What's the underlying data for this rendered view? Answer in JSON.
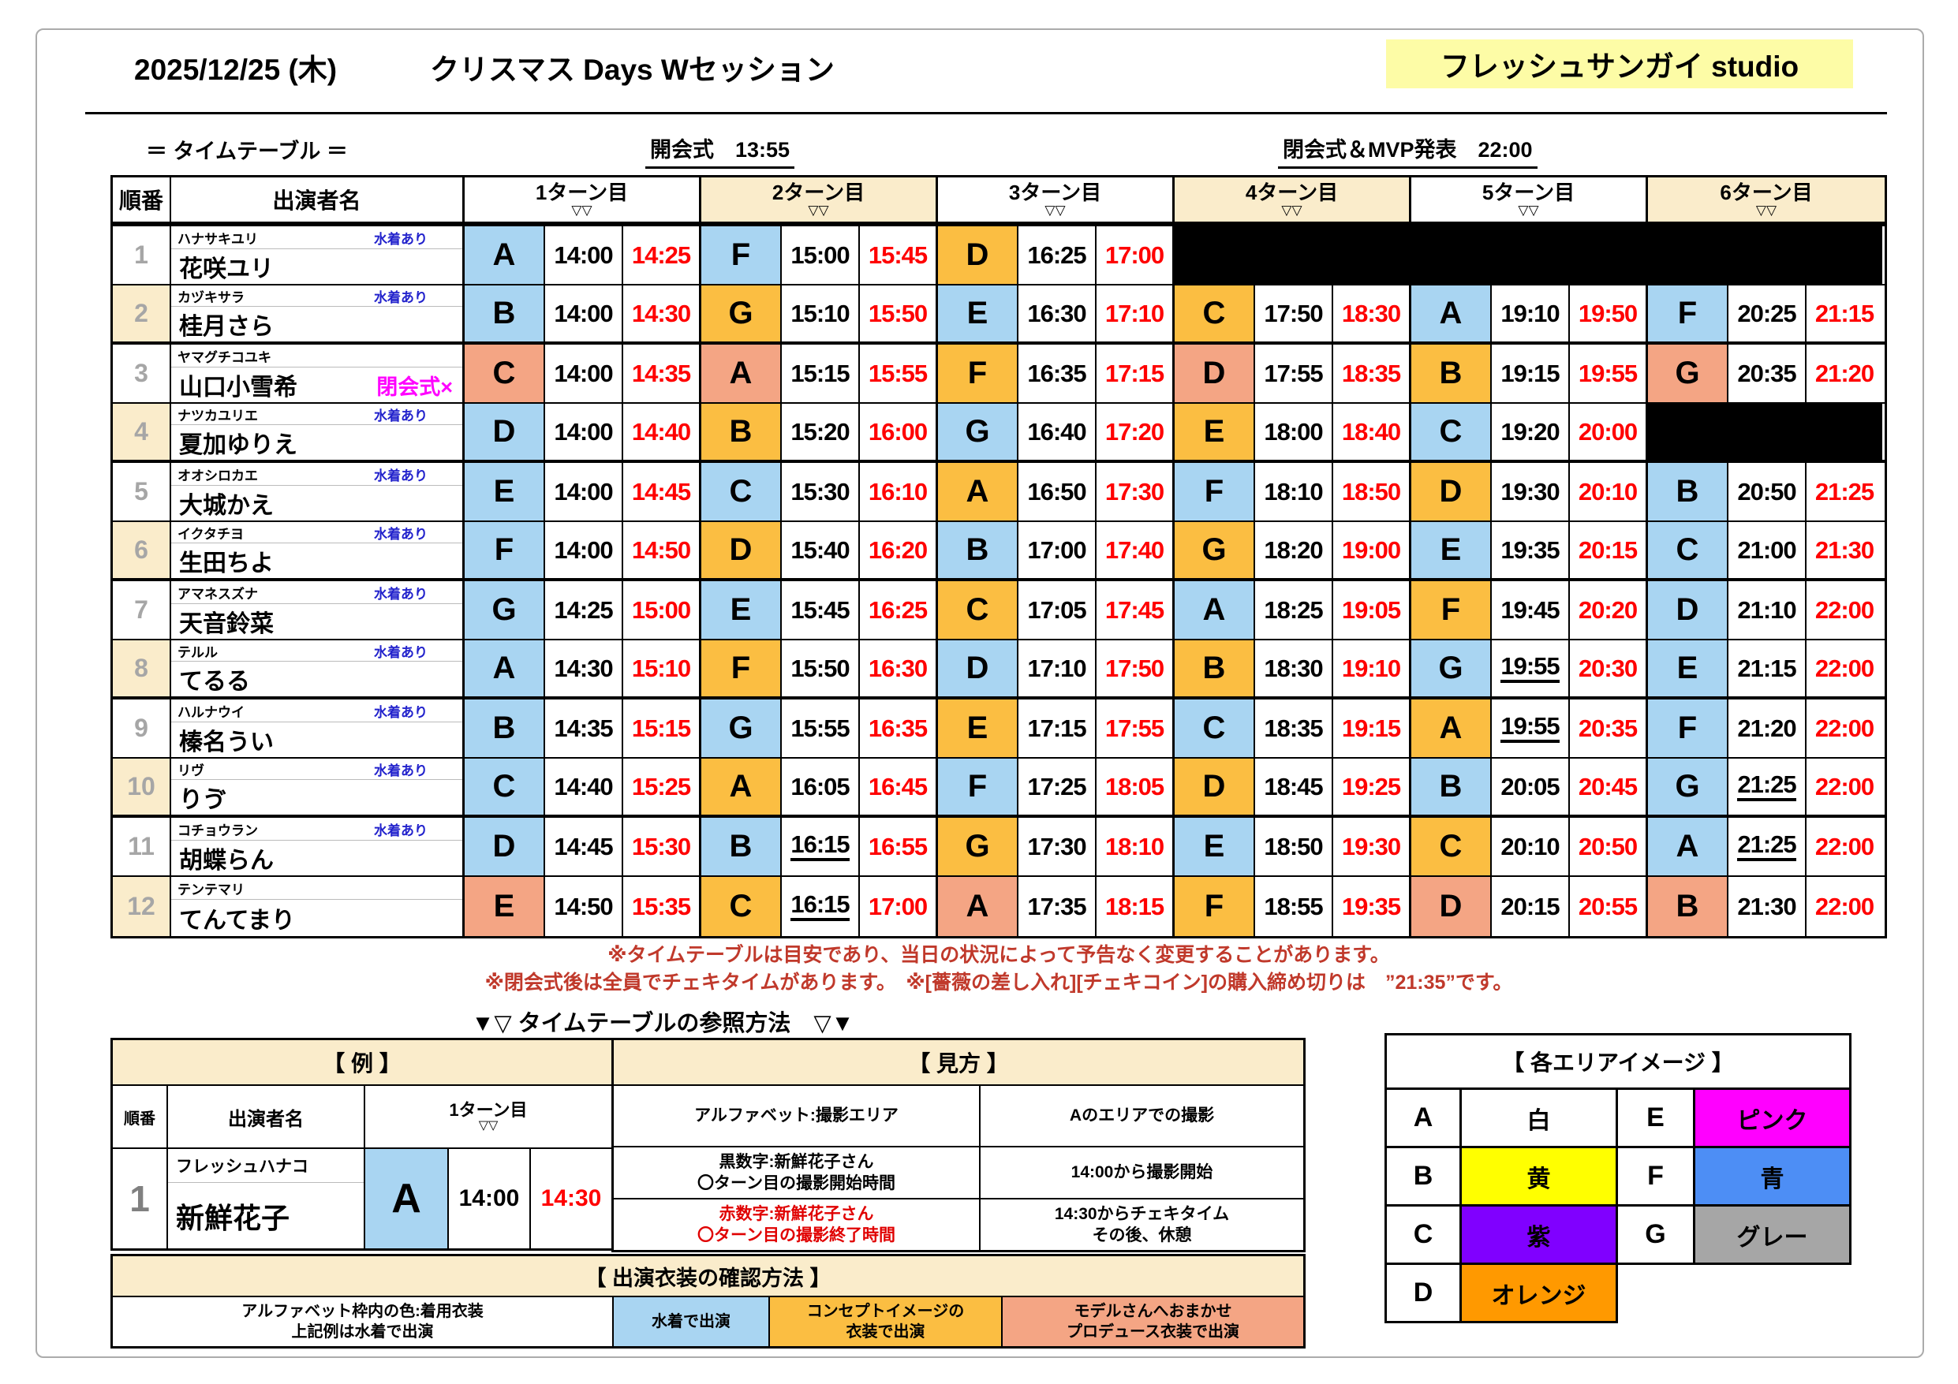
{
  "header": {
    "date": "2025/12/25 (木)",
    "title": "クリスマス Days Wセッション",
    "studio": "フレッシュサンガイ studio",
    "timetable_label": "＝ タイムテーブル ＝",
    "opening": "開会式　13:55",
    "closing": "閉会式＆MVP発表　22:00"
  },
  "colors": {
    "swim_cell": "#A9D5F2",
    "concept_cell": "#FBBE42",
    "produce_cell": "#F4A584",
    "cream": "#FAECCB",
    "studio_bg": "#FDFCA6",
    "end_time_red": "#FF0000",
    "note_red": "#C0392B",
    "swim_text_blue": "#2222CC",
    "closing_x_magenta": "#FF00FF"
  },
  "table": {
    "order_label": "順番",
    "name_label": "出演者名",
    "turn_headers": [
      {
        "label": "1ターン目",
        "sub": "▽▽",
        "tone": "",
        "over": "over"
      },
      {
        "label": "2ターン目",
        "sub": "▽▽",
        "tone": "cream",
        "over": "over"
      },
      {
        "label": "3ターン目",
        "sub": "▽▽",
        "tone": "",
        "over": ""
      },
      {
        "label": "4ターン目",
        "sub": "▽▽",
        "tone": "cream",
        "over": "over"
      },
      {
        "label": "5ターン目",
        "sub": "▽▽",
        "tone": "",
        "over": "over"
      },
      {
        "label": "6ターン目",
        "sub": "▽▽",
        "tone": "cream",
        "over": ""
      }
    ],
    "rows": [
      {
        "no": "1",
        "furigana": "ハナサキユリ",
        "swim": "水着あり",
        "name": "花咲ユリ",
        "note": "",
        "turns": [
          {
            "area": "A",
            "cls": "swim",
            "start": "14:00",
            "end": "14:25",
            "startCls": ""
          },
          {
            "area": "F",
            "cls": "swim",
            "start": "15:00",
            "end": "15:45",
            "startCls": ""
          },
          {
            "area": "D",
            "cls": "concept",
            "start": "16:25",
            "end": "17:00",
            "startCls": ""
          },
          {
            "area": "",
            "cls": "blackout",
            "start": "",
            "end": "",
            "startCls": ""
          },
          {
            "area": "",
            "cls": "blackout",
            "start": "",
            "end": "",
            "startCls": ""
          },
          {
            "area": "",
            "cls": "blackout",
            "start": "",
            "end": "",
            "startCls": ""
          }
        ]
      },
      {
        "no": "2",
        "furigana": "カヅキサラ",
        "swim": "水着あり",
        "name": "桂月さら",
        "note": "",
        "turns": [
          {
            "area": "B",
            "cls": "swim",
            "start": "14:00",
            "end": "14:30",
            "startCls": ""
          },
          {
            "area": "G",
            "cls": "concept",
            "start": "15:10",
            "end": "15:50",
            "startCls": ""
          },
          {
            "area": "E",
            "cls": "swim",
            "start": "16:30",
            "end": "17:10",
            "startCls": ""
          },
          {
            "area": "C",
            "cls": "concept",
            "start": "17:50",
            "end": "18:30",
            "startCls": ""
          },
          {
            "area": "A",
            "cls": "swim",
            "start": "19:10",
            "end": "19:50",
            "startCls": ""
          },
          {
            "area": "F",
            "cls": "swim",
            "start": "20:25",
            "end": "21:15",
            "startCls": ""
          }
        ]
      },
      {
        "no": "3",
        "furigana": "ヤマグチコユキ",
        "swim": "",
        "name": "山口小雪希",
        "note": "閉会式×",
        "turns": [
          {
            "area": "C",
            "cls": "produce",
            "start": "14:00",
            "end": "14:35",
            "startCls": ""
          },
          {
            "area": "A",
            "cls": "produce",
            "start": "15:15",
            "end": "15:55",
            "startCls": ""
          },
          {
            "area": "F",
            "cls": "concept",
            "start": "16:35",
            "end": "17:15",
            "startCls": ""
          },
          {
            "area": "D",
            "cls": "produce",
            "start": "17:55",
            "end": "18:35",
            "startCls": ""
          },
          {
            "area": "B",
            "cls": "concept",
            "start": "19:15",
            "end": "19:55",
            "startCls": ""
          },
          {
            "area": "G",
            "cls": "produce",
            "start": "20:35",
            "end": "21:20",
            "startCls": ""
          }
        ]
      },
      {
        "no": "4",
        "furigana": "ナツカユリエ",
        "swim": "水着あり",
        "name": "夏加ゆりえ",
        "note": "",
        "turns": [
          {
            "area": "D",
            "cls": "swim",
            "start": "14:00",
            "end": "14:40",
            "startCls": ""
          },
          {
            "area": "B",
            "cls": "concept",
            "start": "15:20",
            "end": "16:00",
            "startCls": ""
          },
          {
            "area": "G",
            "cls": "swim",
            "start": "16:40",
            "end": "17:20",
            "startCls": ""
          },
          {
            "area": "E",
            "cls": "concept",
            "start": "18:00",
            "end": "18:40",
            "startCls": ""
          },
          {
            "area": "C",
            "cls": "swim",
            "start": "19:20",
            "end": "20:00",
            "startCls": ""
          },
          {
            "area": "",
            "cls": "blackout",
            "start": "",
            "end": "",
            "startCls": ""
          }
        ]
      },
      {
        "no": "5",
        "furigana": "オオシロカエ",
        "swim": "水着あり",
        "name": "大城かえ",
        "note": "",
        "turns": [
          {
            "area": "E",
            "cls": "swim",
            "start": "14:00",
            "end": "14:45",
            "startCls": ""
          },
          {
            "area": "C",
            "cls": "swim",
            "start": "15:30",
            "end": "16:10",
            "startCls": ""
          },
          {
            "area": "A",
            "cls": "concept",
            "start": "16:50",
            "end": "17:30",
            "startCls": ""
          },
          {
            "area": "F",
            "cls": "swim",
            "start": "18:10",
            "end": "18:50",
            "startCls": ""
          },
          {
            "area": "D",
            "cls": "concept",
            "start": "19:30",
            "end": "20:10",
            "startCls": ""
          },
          {
            "area": "B",
            "cls": "swim",
            "start": "20:50",
            "end": "21:25",
            "startCls": ""
          }
        ]
      },
      {
        "no": "6",
        "furigana": "イクタチヨ",
        "swim": "水着あり",
        "name": "生田ちよ",
        "note": "",
        "turns": [
          {
            "area": "F",
            "cls": "swim",
            "start": "14:00",
            "end": "14:50",
            "startCls": ""
          },
          {
            "area": "D",
            "cls": "concept",
            "start": "15:40",
            "end": "16:20",
            "startCls": ""
          },
          {
            "area": "B",
            "cls": "swim",
            "start": "17:00",
            "end": "17:40",
            "startCls": ""
          },
          {
            "area": "G",
            "cls": "concept",
            "start": "18:20",
            "end": "19:00",
            "startCls": ""
          },
          {
            "area": "E",
            "cls": "swim",
            "start": "19:35",
            "end": "20:15",
            "startCls": ""
          },
          {
            "area": "C",
            "cls": "swim",
            "start": "21:00",
            "end": "21:30",
            "startCls": ""
          }
        ]
      },
      {
        "no": "7",
        "furigana": "アマネスズナ",
        "swim": "水着あり",
        "name": "天音鈴菜",
        "note": "",
        "turns": [
          {
            "area": "G",
            "cls": "swim",
            "start": "14:25",
            "end": "15:00",
            "startCls": ""
          },
          {
            "area": "E",
            "cls": "swim",
            "start": "15:45",
            "end": "16:25",
            "startCls": ""
          },
          {
            "area": "C",
            "cls": "concept",
            "start": "17:05",
            "end": "17:45",
            "startCls": ""
          },
          {
            "area": "A",
            "cls": "swim",
            "start": "18:25",
            "end": "19:05",
            "startCls": ""
          },
          {
            "area": "F",
            "cls": "concept",
            "start": "19:45",
            "end": "20:20",
            "startCls": ""
          },
          {
            "area": "D",
            "cls": "swim",
            "start": "21:10",
            "end": "22:00",
            "startCls": ""
          }
        ]
      },
      {
        "no": "8",
        "furigana": "テルル",
        "swim": "水着あり",
        "name": "てるる",
        "note": "",
        "turns": [
          {
            "area": "A",
            "cls": "swim",
            "start": "14:30",
            "end": "15:10",
            "startCls": ""
          },
          {
            "area": "F",
            "cls": "concept",
            "start": "15:50",
            "end": "16:30",
            "startCls": ""
          },
          {
            "area": "D",
            "cls": "swim",
            "start": "17:10",
            "end": "17:50",
            "startCls": ""
          },
          {
            "area": "B",
            "cls": "concept",
            "start": "18:30",
            "end": "19:10",
            "startCls": ""
          },
          {
            "area": "G",
            "cls": "swim",
            "start": "19:55",
            "end": "20:30",
            "startCls": "ul"
          },
          {
            "area": "E",
            "cls": "swim",
            "start": "21:15",
            "end": "22:00",
            "startCls": ""
          }
        ]
      },
      {
        "no": "9",
        "furigana": "ハルナウイ",
        "swim": "水着あり",
        "name": "榛名うい",
        "note": "",
        "turns": [
          {
            "area": "B",
            "cls": "swim",
            "start": "14:35",
            "end": "15:15",
            "startCls": ""
          },
          {
            "area": "G",
            "cls": "swim",
            "start": "15:55",
            "end": "16:35",
            "startCls": ""
          },
          {
            "area": "E",
            "cls": "concept",
            "start": "17:15",
            "end": "17:55",
            "startCls": ""
          },
          {
            "area": "C",
            "cls": "swim",
            "start": "18:35",
            "end": "19:15",
            "startCls": ""
          },
          {
            "area": "A",
            "cls": "concept",
            "start": "19:55",
            "end": "20:35",
            "startCls": "ul"
          },
          {
            "area": "F",
            "cls": "swim",
            "start": "21:20",
            "end": "22:00",
            "startCls": ""
          }
        ]
      },
      {
        "no": "10",
        "furigana": "リヴ",
        "swim": "水着あり",
        "name": "りゔ",
        "note": "",
        "turns": [
          {
            "area": "C",
            "cls": "swim",
            "start": "14:40",
            "end": "15:25",
            "startCls": ""
          },
          {
            "area": "A",
            "cls": "concept",
            "start": "16:05",
            "end": "16:45",
            "startCls": ""
          },
          {
            "area": "F",
            "cls": "swim",
            "start": "17:25",
            "end": "18:05",
            "startCls": ""
          },
          {
            "area": "D",
            "cls": "concept",
            "start": "18:45",
            "end": "19:25",
            "startCls": ""
          },
          {
            "area": "B",
            "cls": "swim",
            "start": "20:05",
            "end": "20:45",
            "startCls": ""
          },
          {
            "area": "G",
            "cls": "swim",
            "start": "21:25",
            "end": "22:00",
            "startCls": "ul"
          }
        ]
      },
      {
        "no": "11",
        "furigana": "コチョウラン",
        "swim": "水着あり",
        "name": "胡蝶らん",
        "note": "",
        "turns": [
          {
            "area": "D",
            "cls": "swim",
            "start": "14:45",
            "end": "15:30",
            "startCls": ""
          },
          {
            "area": "B",
            "cls": "swim",
            "start": "16:15",
            "end": "16:55",
            "startCls": "ul"
          },
          {
            "area": "G",
            "cls": "concept",
            "start": "17:30",
            "end": "18:10",
            "startCls": ""
          },
          {
            "area": "E",
            "cls": "swim",
            "start": "18:50",
            "end": "19:30",
            "startCls": ""
          },
          {
            "area": "C",
            "cls": "concept",
            "start": "20:10",
            "end": "20:50",
            "startCls": ""
          },
          {
            "area": "A",
            "cls": "swim",
            "start": "21:25",
            "end": "22:00",
            "startCls": "ul"
          }
        ]
      },
      {
        "no": "12",
        "furigana": "テンテマリ",
        "swim": "",
        "name": "てんてまり",
        "note": "",
        "turns": [
          {
            "area": "E",
            "cls": "produce",
            "start": "14:50",
            "end": "15:35",
            "startCls": ""
          },
          {
            "area": "C",
            "cls": "concept",
            "start": "16:15",
            "end": "17:00",
            "startCls": "ul"
          },
          {
            "area": "A",
            "cls": "produce",
            "start": "17:35",
            "end": "18:15",
            "startCls": ""
          },
          {
            "area": "F",
            "cls": "concept",
            "start": "18:55",
            "end": "19:35",
            "startCls": ""
          },
          {
            "area": "D",
            "cls": "produce",
            "start": "20:15",
            "end": "20:55",
            "startCls": ""
          },
          {
            "area": "B",
            "cls": "produce",
            "start": "21:30",
            "end": "22:00",
            "startCls": ""
          }
        ]
      }
    ]
  },
  "notes": {
    "line1": "※タイムテーブルは目安であり、当日の状況によって予告なく変更することがあります。",
    "line2": "※閉会式後は全員でチェキタイムがあります。　※[薔薇の差し入れ][チェキコイン]の購入締め切りは　”21:35”です。"
  },
  "reference_title": "▼▽ タイムテーブルの参照方法　▽▼",
  "example": {
    "header": "【 例 】",
    "order_label": "順番",
    "name_label": "出演者名",
    "turn_label": "1ターン目",
    "turn_sub": "▽▽",
    "row": {
      "no": "1",
      "furigana": "フレッシュハナコ",
      "name": "新鮮花子",
      "area": "A",
      "start": "14:00",
      "end": "14:30"
    }
  },
  "howto": {
    "header": "【 見方 】",
    "rows": [
      {
        "left": "アルファベット:撮影エリア",
        "right": "Aのエリアでの撮影",
        "leftCls": "",
        "rowCls": "ht-r1"
      },
      {
        "left": "黒数字:新鮮花子さん\n〇ターン目の撮影開始時間",
        "right": "14:00から撮影開始",
        "leftCls": "",
        "rowCls": "ht-r2"
      },
      {
        "left": "赤数字:新鮮花子さん\n〇ターン目の撮影終了時間",
        "right": "14:30からチェキタイム\nその後、休憩",
        "leftCls": "red",
        "rowCls": "ht-r3"
      }
    ]
  },
  "costume": {
    "header": "【 出演衣装の確認方法 】",
    "desc": "アルファベット枠内の色:着用衣装\n上記例は水着で出演",
    "swim": "水着で出演",
    "concept": "コンセプトイメージの\n衣装で出演",
    "produce": "モデルさんへおまかせ\nプロデュース衣装で出演"
  },
  "area_legend": {
    "header": "【 各エリアイメージ 】",
    "rows": [
      {
        "l1": "A",
        "c1": "白",
        "bg1": "#FFFFFF",
        "l2": "E",
        "c2": "ピンク",
        "bg2": "#FF00FF",
        "cls2": ""
      },
      {
        "l1": "B",
        "c1": "黄",
        "bg1": "#FFFF00",
        "l2": "F",
        "c2": "青",
        "bg2": "#4D8EF5",
        "cls2": ""
      },
      {
        "l1": "C",
        "c1": "紫",
        "bg1": "#8000FF",
        "l2": "G",
        "c2": "グレー",
        "bg2": "#A6A6A6",
        "cls2": ""
      },
      {
        "l1": "D",
        "c1": "オレンジ",
        "bg1": "#FF9900",
        "l2": "",
        "c2": "",
        "bg2": null,
        "cls2": "nb"
      }
    ]
  }
}
